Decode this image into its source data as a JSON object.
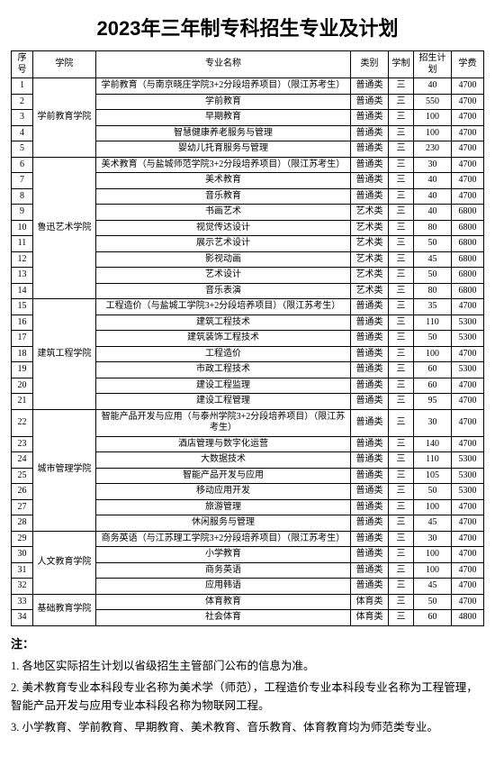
{
  "title": "2023年三年制专科招生专业及计划",
  "columns": [
    "序号",
    "学院",
    "专业名称",
    "类别",
    "学制",
    "招生计划",
    "学费"
  ],
  "departments": [
    {
      "name": "学前教育学院",
      "rows": [
        {
          "idx": "1",
          "major": "学前教育（与南京晓庄学院3+2分段培养项目）（限江苏考生）",
          "cat": "普通类",
          "years": "三",
          "plan": "40",
          "fee": "4700"
        },
        {
          "idx": "2",
          "major": "学前教育",
          "cat": "普通类",
          "years": "三",
          "plan": "550",
          "fee": "4700"
        },
        {
          "idx": "3",
          "major": "早期教育",
          "cat": "普通类",
          "years": "三",
          "plan": "100",
          "fee": "4700"
        },
        {
          "idx": "4",
          "major": "智慧健康养老服务与管理",
          "cat": "普通类",
          "years": "三",
          "plan": "100",
          "fee": "4700"
        },
        {
          "idx": "5",
          "major": "婴幼儿托育服务与管理",
          "cat": "普通类",
          "years": "三",
          "plan": "230",
          "fee": "4700"
        }
      ]
    },
    {
      "name": "鲁迅艺术学院",
      "rows": [
        {
          "idx": "6",
          "major": "美术教育（与盐城师范学院3+2分段培养项目）（限江苏考生）",
          "cat": "普通类",
          "years": "三",
          "plan": "30",
          "fee": "4700"
        },
        {
          "idx": "7",
          "major": "美术教育",
          "cat": "普通类",
          "years": "三",
          "plan": "40",
          "fee": "4700"
        },
        {
          "idx": "8",
          "major": "音乐教育",
          "cat": "普通类",
          "years": "三",
          "plan": "40",
          "fee": "4700"
        },
        {
          "idx": "9",
          "major": "书画艺术",
          "cat": "艺术类",
          "years": "三",
          "plan": "40",
          "fee": "6800"
        },
        {
          "idx": "10",
          "major": "视觉传达设计",
          "cat": "艺术类",
          "years": "三",
          "plan": "80",
          "fee": "6800"
        },
        {
          "idx": "11",
          "major": "展示艺术设计",
          "cat": "艺术类",
          "years": "三",
          "plan": "50",
          "fee": "6800"
        },
        {
          "idx": "12",
          "major": "影视动画",
          "cat": "艺术类",
          "years": "三",
          "plan": "45",
          "fee": "6800"
        },
        {
          "idx": "13",
          "major": "艺术设计",
          "cat": "艺术类",
          "years": "三",
          "plan": "50",
          "fee": "6800"
        },
        {
          "idx": "14",
          "major": "音乐表演",
          "cat": "艺术类",
          "years": "三",
          "plan": "80",
          "fee": "6800"
        }
      ]
    },
    {
      "name": "建筑工程学院",
      "rows": [
        {
          "idx": "15",
          "major": "工程造价（与盐城工学院3+2分段培养项目）（限江苏考生）",
          "cat": "普通类",
          "years": "三",
          "plan": "35",
          "fee": "4700"
        },
        {
          "idx": "16",
          "major": "建筑工程技术",
          "cat": "普通类",
          "years": "三",
          "plan": "110",
          "fee": "5300"
        },
        {
          "idx": "17",
          "major": "建筑装饰工程技术",
          "cat": "普通类",
          "years": "三",
          "plan": "50",
          "fee": "5300"
        },
        {
          "idx": "18",
          "major": "工程造价",
          "cat": "普通类",
          "years": "三",
          "plan": "100",
          "fee": "4700"
        },
        {
          "idx": "19",
          "major": "市政工程技术",
          "cat": "普通类",
          "years": "三",
          "plan": "60",
          "fee": "5300"
        },
        {
          "idx": "20",
          "major": "建设工程监理",
          "cat": "普通类",
          "years": "三",
          "plan": "60",
          "fee": "4700"
        },
        {
          "idx": "21",
          "major": "建设工程管理",
          "cat": "普通类",
          "years": "三",
          "plan": "95",
          "fee": "4700"
        }
      ]
    },
    {
      "name": "城市管理学院",
      "rows": [
        {
          "idx": "22",
          "major": "智能产品开发与应用（与泰州学院3+2分段培养项目）（限江苏考生）",
          "cat": "普通类",
          "years": "三",
          "plan": "30",
          "fee": "4700"
        },
        {
          "idx": "23",
          "major": "酒店管理与数字化运营",
          "cat": "普通类",
          "years": "三",
          "plan": "140",
          "fee": "4700"
        },
        {
          "idx": "24",
          "major": "大数据技术",
          "cat": "普通类",
          "years": "三",
          "plan": "110",
          "fee": "5300"
        },
        {
          "idx": "25",
          "major": "智能产品开发与应用",
          "cat": "普通类",
          "years": "三",
          "plan": "105",
          "fee": "5300"
        },
        {
          "idx": "26",
          "major": "移动应用开发",
          "cat": "普通类",
          "years": "三",
          "plan": "50",
          "fee": "5300"
        },
        {
          "idx": "27",
          "major": "旅游管理",
          "cat": "普通类",
          "years": "三",
          "plan": "100",
          "fee": "4700"
        },
        {
          "idx": "28",
          "major": "休闲服务与管理",
          "cat": "普通类",
          "years": "三",
          "plan": "45",
          "fee": "4700"
        }
      ]
    },
    {
      "name": "人文教育学院",
      "rows": [
        {
          "idx": "29",
          "major": "商务英语（与江苏理工学院3+2分段培养项目）（限江苏考生）",
          "cat": "普通类",
          "years": "三",
          "plan": "30",
          "fee": "4700"
        },
        {
          "idx": "30",
          "major": "小学教育",
          "cat": "普通类",
          "years": "三",
          "plan": "100",
          "fee": "4700"
        },
        {
          "idx": "31",
          "major": "商务英语",
          "cat": "普通类",
          "years": "三",
          "plan": "100",
          "fee": "4700"
        },
        {
          "idx": "32",
          "major": "应用韩语",
          "cat": "普通类",
          "years": "三",
          "plan": "45",
          "fee": "4700"
        }
      ]
    },
    {
      "name": "基础教育学院",
      "rows": [
        {
          "idx": "33",
          "major": "体育教育",
          "cat": "体育类",
          "years": "三",
          "plan": "50",
          "fee": "4700"
        },
        {
          "idx": "34",
          "major": "社会体育",
          "cat": "体育类",
          "years": "三",
          "plan": "60",
          "fee": "4800"
        }
      ]
    }
  ],
  "notes": {
    "head": "注：",
    "items": [
      "1. 各地区实际招生计划以省级招生主管部门公布的信息为准。",
      "2. 美术教育专业本科段专业名称为美术学（师范），工程造价专业本科段专业名称为工程管理，智能产品开发与应用专业本科段名称为物联网工程。",
      "3. 小学教育、学前教育、早期教育、美术教育、音乐教育、体育教育均为师范类专业。"
    ]
  }
}
